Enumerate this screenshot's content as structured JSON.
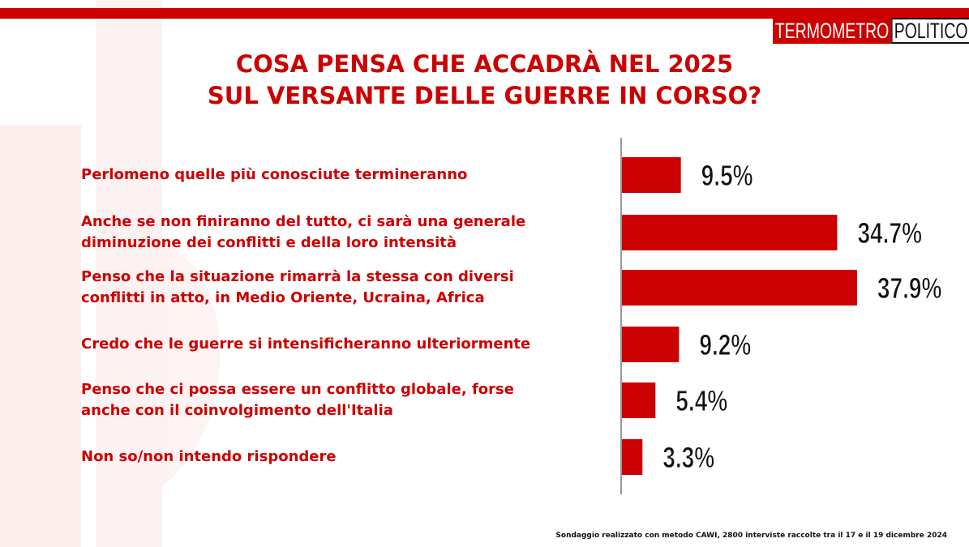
{
  "brand": {
    "logo_left": "TERMOMETRO",
    "logo_right": "POLITICO"
  },
  "title_lines": [
    "COSA PENSA CHE ACCADRÀ NEL 2025",
    "SUL VERSANTE DELLE GUERRE IN CORSO?"
  ],
  "footnote": "Sondaggio realizzato con metodo CAWI, 2800 interviste raccolte tra il 17 e il 19 dicembre 2024",
  "colors": {
    "accent": "#cc0000",
    "text_dark": "#111111"
  },
  "chart_data": {
    "type": "bar",
    "orientation": "horizontal",
    "title": "COSA PENSA CHE ACCADRÀ NEL 2025 SUL VERSANTE DELLE GUERRE IN CORSO?",
    "categories": [
      [
        "Perlomeno quelle più conosciute termineranno"
      ],
      [
        "Anche se non finiranno del tutto, ci sarà una generale",
        "diminuzione dei conflitti e della loro intensità"
      ],
      [
        "Penso che la situazione rimarrà  la stessa con diversi",
        "conflitti in atto, in Medio Oriente, Ucraina, Africa"
      ],
      [
        "Credo che le guerre si intensificheranno ulteriormente"
      ],
      [
        "Penso che ci possa essere un conflitto globale, forse",
        "anche con il coinvolgimento dell'Italia"
      ],
      [
        "Non so/non intendo rispondere"
      ]
    ],
    "values": [
      9.5,
      34.7,
      37.9,
      9.2,
      5.4,
      3.3
    ],
    "value_labels": [
      "9.5%",
      "34.7%",
      "37.9%",
      "9.2%",
      "5.4%",
      "3.3%"
    ],
    "unit": "%",
    "xlim": [
      0,
      40
    ],
    "grid": false,
    "legend": "none",
    "bar_color": "#cc0000"
  }
}
